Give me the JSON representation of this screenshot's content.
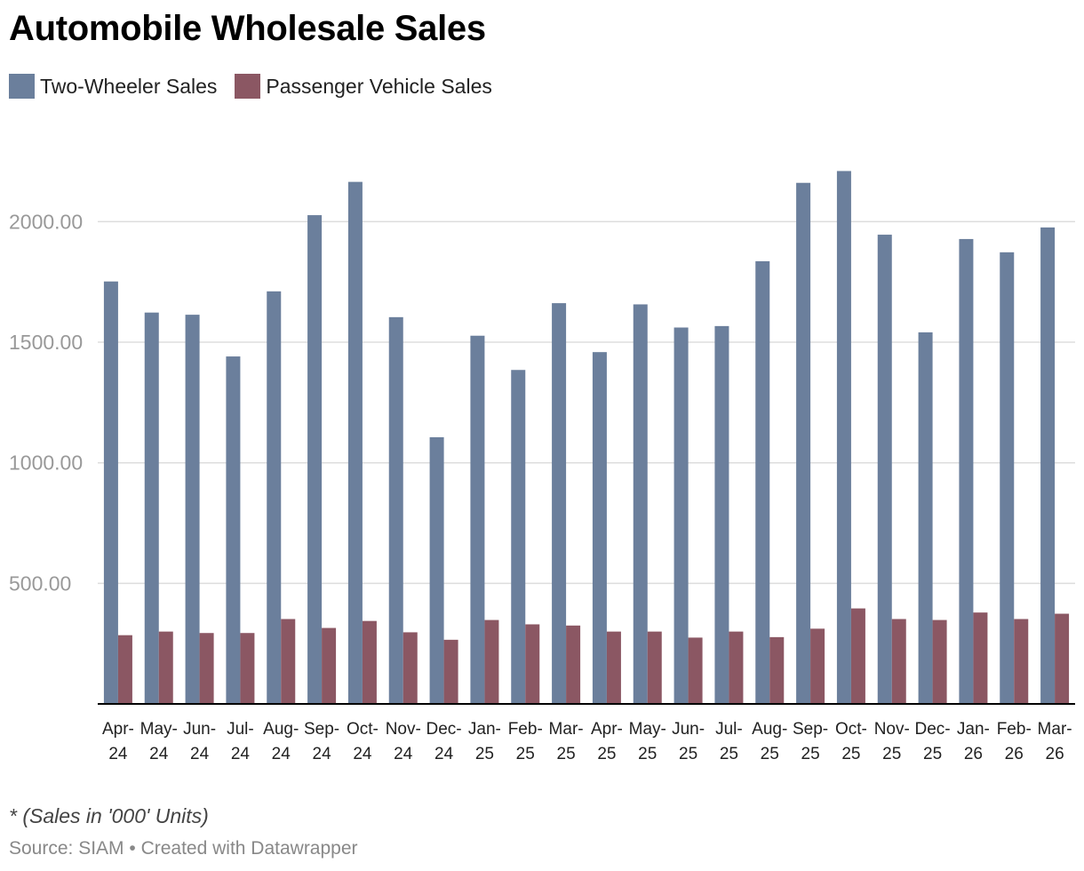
{
  "title": "Automobile Wholesale Sales",
  "note": "* (Sales in '000' Units)",
  "source": "Source: SIAM • Created with Datawrapper",
  "colors": {
    "two_wheeler": "#6b7f9c",
    "passenger": "#8b5763",
    "grid": "#dddddd",
    "axis": "#000000",
    "tick": "#999999"
  },
  "legend": [
    {
      "label": "Two-Wheeler Sales",
      "color": "#6b7f9c"
    },
    {
      "label": "Passenger Vehicle Sales",
      "color": "#8b5763"
    }
  ],
  "chart_data": {
    "type": "bar",
    "title": "Automobile Wholesale Sales",
    "xlabel": "",
    "ylabel": "",
    "ylim": [
      0,
      2200
    ],
    "yticks": [
      500,
      1000,
      1500,
      2000
    ],
    "ytick_labels": [
      "500.00",
      "1000.00",
      "1500.00",
      "2000.00"
    ],
    "grid": true,
    "legend_position": "top-left",
    "categories": [
      [
        "Apr-",
        "24"
      ],
      [
        "May-",
        "24"
      ],
      [
        "Jun-",
        "24"
      ],
      [
        "Jul-",
        "24"
      ],
      [
        "Aug-",
        "24"
      ],
      [
        "Sep-",
        "24"
      ],
      [
        "Oct-",
        "24"
      ],
      [
        "Nov-",
        "24"
      ],
      [
        "Dec-",
        "24"
      ],
      [
        "Jan-",
        "25"
      ],
      [
        "Feb-",
        "25"
      ],
      [
        "Mar-",
        "25"
      ],
      [
        "Apr-",
        "25"
      ],
      [
        "May-",
        "25"
      ],
      [
        "Jun-",
        "25"
      ],
      [
        "Jul-",
        "25"
      ],
      [
        "Aug-",
        "25"
      ],
      [
        "Sep-",
        "25"
      ],
      [
        "Oct-",
        "25"
      ],
      [
        "Nov-",
        "25"
      ],
      [
        "Dec-",
        "25"
      ],
      [
        "Jan-",
        "26"
      ],
      [
        "Feb-",
        "26"
      ],
      [
        "Mar-",
        "26"
      ]
    ],
    "series": [
      {
        "name": "Two-Wheeler Sales",
        "values": [
          1752,
          1623,
          1614,
          1441,
          1711,
          2027,
          2165,
          1604,
          1106,
          1527,
          1385,
          1662,
          1459,
          1657,
          1561,
          1567,
          1836,
          2161,
          2210,
          1946,
          1541,
          1928,
          1873,
          1976
        ]
      },
      {
        "name": "Passenger Vehicle Sales",
        "values": [
          285,
          300,
          294,
          294,
          352,
          315,
          344,
          297,
          266,
          348,
          330,
          325,
          300,
          300,
          275,
          300,
          277,
          312,
          396,
          352,
          348,
          379,
          352,
          374
        ]
      }
    ]
  }
}
